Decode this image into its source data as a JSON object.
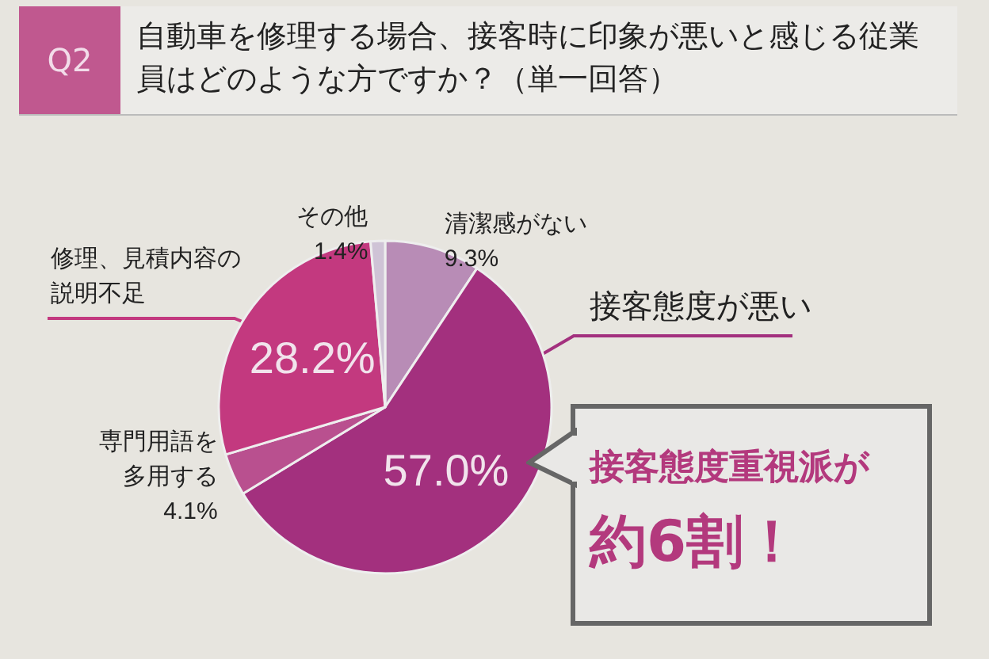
{
  "chart_data": {
    "type": "pie",
    "title": "自動車を修理する場合、接客時に印象が悪いと感じる従業員はどのような方ですか？（単一回答）",
    "categories": [
      "清潔感がない",
      "接客態度が悪い",
      "専門用語を多用する",
      "修理、見積内容の説明不足",
      "その他"
    ],
    "values": [
      9.3,
      57.0,
      4.1,
      28.2,
      1.4
    ],
    "value_labels": [
      "9.3%",
      "57.0%",
      "4.1%",
      "28.2%",
      "1.4%"
    ],
    "colors": [
      "#b88cb6",
      "#a3307e",
      "#b9508f",
      "#c3397f",
      "#cfc3d6"
    ],
    "annotations": [
      "Q2",
      "接客態度重視派が",
      "約6割！"
    ],
    "legend": false
  }
}
